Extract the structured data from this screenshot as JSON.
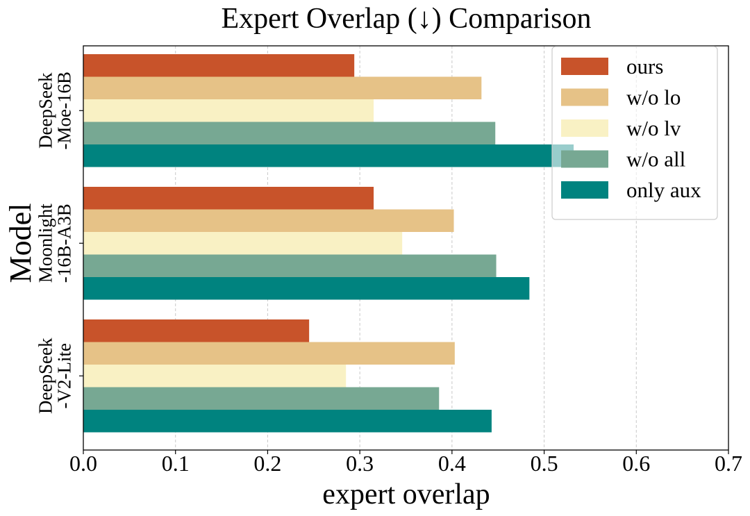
{
  "chart_data": {
    "type": "bar",
    "orientation": "horizontal",
    "title": "Expert Overlap (↓) Comparison",
    "xlabel": "expert overlap",
    "ylabel": "Model",
    "xlim": [
      0,
      0.7
    ],
    "xticks": [
      "0.0",
      "0.1",
      "0.2",
      "0.3",
      "0.4",
      "0.5",
      "0.6",
      "0.7"
    ],
    "xtick_values": [
      0,
      0.1,
      0.2,
      0.3,
      0.4,
      0.5,
      0.6,
      0.7
    ],
    "grid_x": true,
    "legend_position": "top-right",
    "categories": [
      [
        "DeepSeek",
        "-Moe-16B"
      ],
      [
        "Moonlight",
        "-16B-A3B"
      ],
      [
        "DeepSeek",
        "-V2-Lite"
      ]
    ],
    "series": [
      {
        "name": "ours",
        "color": "#C8532A",
        "values": [
          0.294,
          0.315,
          0.245
        ]
      },
      {
        "name": "w/o lo",
        "color": "#E6C287",
        "values": [
          0.432,
          0.402,
          0.403
        ]
      },
      {
        "name": "w/o lv",
        "color": "#F9F1C4",
        "values": [
          0.315,
          0.346,
          0.285
        ]
      },
      {
        "name": "w/o all",
        "color": "#77A893",
        "values": [
          0.447,
          0.448,
          0.386
        ]
      },
      {
        "name": "only aux",
        "color": "#00837F",
        "values": [
          0.532,
          0.484,
          0.443
        ]
      }
    ]
  }
}
